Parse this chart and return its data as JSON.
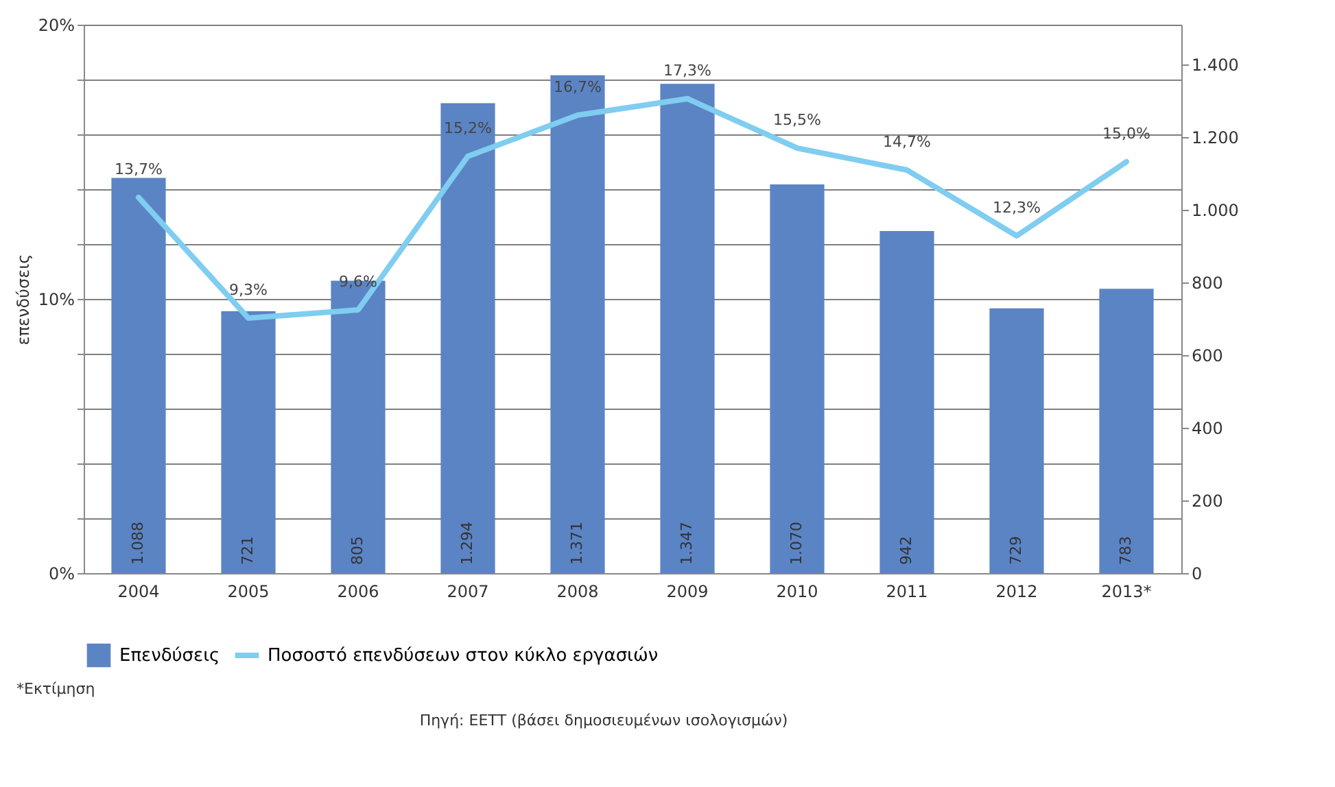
{
  "chart_data": {
    "type": "bar",
    "ylabel": "επενδύσεις",
    "categories": [
      "2004",
      "2005",
      "2006",
      "2007",
      "2008",
      "2009",
      "2010",
      "2011",
      "2012",
      "2013*"
    ],
    "series": [
      {
        "name": "Επενδύσεις",
        "axis": "y2",
        "color": "#5b84c4",
        "values": [
          1088,
          721,
          805,
          1294,
          1371,
          1347,
          1070,
          942,
          729,
          783
        ],
        "value_labels": [
          "1.088",
          "721",
          "805",
          "1.294",
          "1.371",
          "1.347",
          "1.070",
          "942",
          "729",
          "783"
        ]
      },
      {
        "name": "Ποσοστό επενδύσεων στον κύκλο εργασιών",
        "type": "line",
        "color": "#7fcdf0",
        "values": [
          13.7,
          9.3,
          9.6,
          15.2,
          16.7,
          17.3,
          15.5,
          14.7,
          12.3,
          15.0
        ],
        "value_labels": [
          "13,7%",
          "9,3%",
          "9,6%",
          "15,2%",
          "16,7%",
          "17,3%",
          "15,5%",
          "14,7%",
          "12,3%",
          "15,0%"
        ]
      }
    ],
    "ylim": [
      0,
      20
    ],
    "yticks": [
      {
        "value": 0,
        "label": "0%"
      },
      {
        "value": 2,
        "label": null
      },
      {
        "value": 4,
        "label": null
      },
      {
        "value": 6,
        "label": null
      },
      {
        "value": 8,
        "label": null
      },
      {
        "value": 10,
        "label": "10%"
      },
      {
        "value": 12,
        "label": null
      },
      {
        "value": 14,
        "label": null
      },
      {
        "value": 16,
        "label": null
      },
      {
        "value": 18,
        "label": null
      },
      {
        "value": 20,
        "label": "20%"
      }
    ],
    "y2lim": [
      0,
      1510
    ],
    "y2ticks": [
      {
        "value": 0,
        "label": "0"
      },
      {
        "value": 200,
        "label": "200"
      },
      {
        "value": 400,
        "label": "400"
      },
      {
        "value": 600,
        "label": "600"
      },
      {
        "value": 800,
        "label": "800"
      },
      {
        "value": 1000,
        "label": "1.000"
      },
      {
        "value": 1200,
        "label": "1.200"
      },
      {
        "value": 1400,
        "label": "1.400"
      }
    ],
    "grid": "y",
    "legend": "bottom",
    "marker": "none",
    "line_style": "solid",
    "annotations": [
      "*Εκτίμηση",
      "Πηγή: ΕΕΤΤ (βάσει δημοσιευμένων ισολογισμών)"
    ]
  }
}
